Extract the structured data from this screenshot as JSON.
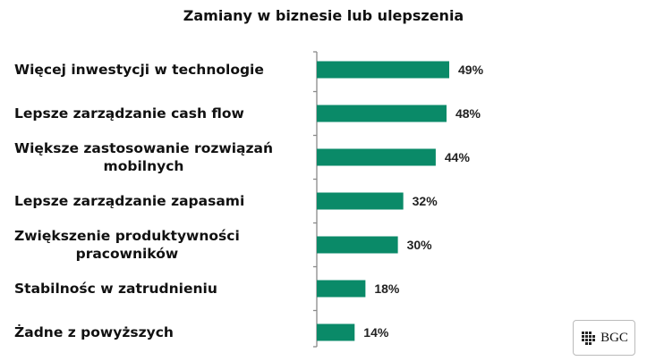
{
  "chart_data": {
    "type": "bar",
    "orientation": "horizontal",
    "title": "Zamiany w biznesie lub ulepszenia",
    "categories": [
      [
        "Więcej inwestycji w technologie"
      ],
      [
        "Lepsze zarządzanie cash flow"
      ],
      [
        "Większe zastosowanie rozwiązań",
        "mobilnych"
      ],
      [
        "Lepsze zarządzanie zapasami"
      ],
      [
        "Zwiększenie produktywności",
        "pracowników"
      ],
      [
        "Stabilnośc w zatrudnieniu"
      ],
      [
        "Żadne z powyższych"
      ]
    ],
    "values": [
      49,
      48,
      44,
      32,
      30,
      18,
      14
    ],
    "value_labels": [
      "49%",
      "48%",
      "44%",
      "32%",
      "30%",
      "18%",
      "14%"
    ],
    "xlim": [
      0,
      100
    ],
    "grid": false,
    "colors": {
      "bar": "#0a8a68",
      "axis": "#8a8a8a"
    }
  },
  "logo": {
    "text": "BGC"
  }
}
